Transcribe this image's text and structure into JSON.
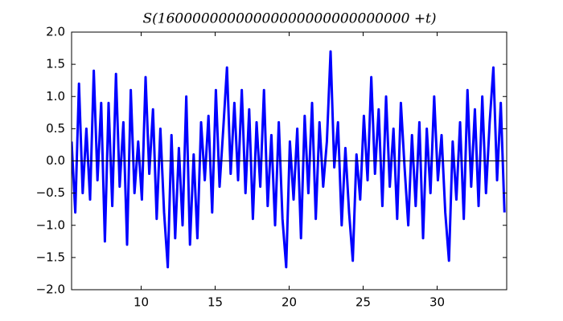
{
  "chart_data": {
    "type": "line",
    "title": "S(16000000000000000000000000000 +t)",
    "x": [
      5.3,
      5.55,
      5.8,
      6.05,
      6.3,
      6.55,
      6.8,
      7.05,
      7.3,
      7.55,
      7.8,
      8.05,
      8.3,
      8.55,
      8.8,
      9.05,
      9.3,
      9.55,
      9.8,
      10.05,
      10.3,
      10.55,
      10.8,
      11.05,
      11.3,
      11.55,
      11.8,
      12.05,
      12.3,
      12.55,
      12.8,
      13.05,
      13.3,
      13.55,
      13.8,
      14.05,
      14.3,
      14.55,
      14.8,
      15.05,
      15.3,
      15.55,
      15.8,
      16.05,
      16.3,
      16.55,
      16.8,
      17.05,
      17.3,
      17.55,
      17.8,
      18.05,
      18.3,
      18.55,
      18.8,
      19.05,
      19.3,
      19.55,
      19.8,
      20.05,
      20.3,
      20.55,
      20.8,
      21.05,
      21.3,
      21.55,
      21.8,
      22.05,
      22.3,
      22.55,
      22.8,
      23.05,
      23.3,
      23.55,
      23.8,
      24.05,
      24.3,
      24.55,
      24.8,
      25.05,
      25.3,
      25.55,
      25.8,
      26.05,
      26.3,
      26.55,
      26.8,
      27.05,
      27.3,
      27.55,
      27.8,
      28.05,
      28.3,
      28.55,
      28.8,
      29.05,
      29.3,
      29.55,
      29.8,
      30.05,
      30.3,
      30.55,
      30.8,
      31.05,
      31.3,
      31.55,
      31.8,
      32.05,
      32.3,
      32.55,
      32.8,
      33.05,
      33.3,
      33.55,
      33.8,
      34.05,
      34.3,
      34.55
    ],
    "series": [
      {
        "color": "#0000ff",
        "values": [
          0.3,
          -0.8,
          1.2,
          -0.5,
          0.5,
          -0.6,
          1.4,
          -0.3,
          0.9,
          -1.25,
          0.9,
          -0.7,
          1.35,
          -0.4,
          0.6,
          -1.3,
          1.1,
          -0.5,
          0.3,
          -0.6,
          1.3,
          -0.2,
          0.8,
          -0.9,
          0.5,
          -0.8,
          -1.65,
          0.4,
          -1.2,
          0.2,
          -1.0,
          1.0,
          -1.3,
          0.1,
          -1.2,
          0.6,
          -0.3,
          0.7,
          -0.8,
          1.1,
          -0.4,
          0.5,
          1.45,
          -0.2,
          0.9,
          -0.3,
          1.1,
          -0.5,
          0.8,
          -0.9,
          0.6,
          -0.4,
          1.1,
          -0.7,
          0.4,
          -1.0,
          0.6,
          -0.9,
          -1.65,
          0.3,
          -0.6,
          0.5,
          -1.2,
          0.7,
          -0.5,
          0.9,
          -0.9,
          0.6,
          -0.4,
          0.3,
          1.7,
          -0.1,
          0.6,
          -1.0,
          0.2,
          -0.8,
          -1.55,
          0.1,
          -0.6,
          0.7,
          -0.3,
          1.3,
          -0.2,
          0.8,
          -0.7,
          1.0,
          -0.4,
          0.5,
          -0.9,
          0.9,
          -0.1,
          -1.0,
          0.4,
          -0.7,
          0.6,
          -1.2,
          0.5,
          -0.5,
          1.0,
          -0.3,
          0.4,
          -0.8,
          -1.55,
          0.3,
          -0.6,
          0.6,
          -0.9,
          1.1,
          -0.4,
          0.8,
          -0.7,
          1.0,
          -0.5,
          0.6,
          1.45,
          -0.3,
          0.9,
          -0.8
        ]
      }
    ],
    "hline": 0,
    "xlim": [
      5.3,
      34.7
    ],
    "ylim": [
      -2,
      2
    ],
    "xticks": [
      10,
      15,
      20,
      25,
      30
    ],
    "yticks": [
      {
        "value": -2,
        "label": "−2.0"
      },
      {
        "value": -1.5,
        "label": "−1.5"
      },
      {
        "value": -1,
        "label": "−1.0"
      },
      {
        "value": -0.5,
        "label": "−0.5"
      },
      {
        "value": 0,
        "label": "0.0"
      },
      {
        "value": 0.5,
        "label": "0.5"
      },
      {
        "value": 1,
        "label": "1.0"
      },
      {
        "value": 1.5,
        "label": "1.5"
      },
      {
        "value": 2,
        "label": "2.0"
      }
    ]
  }
}
